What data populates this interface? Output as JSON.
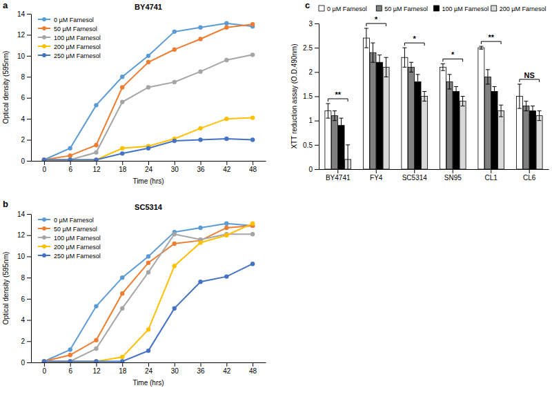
{
  "chart_data": [
    {
      "type": "line",
      "panel": "a",
      "title": "BY4741",
      "x_label": "Time (hrs)",
      "y_label": "Optical density (595nm)",
      "x": [
        0,
        6,
        12,
        18,
        24,
        30,
        36,
        42,
        48
      ],
      "xlim": [
        -3,
        51
      ],
      "xticks": [
        0,
        6,
        12,
        18,
        24,
        30,
        36,
        42,
        48
      ],
      "ylim": [
        0,
        14
      ],
      "yticks": [
        0,
        2,
        4,
        6,
        8,
        10,
        12,
        14
      ],
      "grid": false,
      "legend": "upper left",
      "marker": "circle",
      "series": [
        {
          "name": "0 µM Farnesol",
          "color": "#5b9bd5",
          "values": [
            0.1,
            1.2,
            5.3,
            8.0,
            10.0,
            12.3,
            12.7,
            13.1,
            12.8
          ]
        },
        {
          "name": "50 µM Farnesol",
          "color": "#ed7d31",
          "values": [
            0.1,
            0.5,
            1.5,
            7.0,
            9.4,
            10.6,
            11.6,
            12.7,
            13.0
          ]
        },
        {
          "name": "100 µM Farnesol",
          "color": "#a5a5a5",
          "values": [
            0.1,
            0.1,
            0.8,
            5.6,
            7.0,
            7.5,
            8.5,
            9.6,
            10.1
          ]
        },
        {
          "name": "200 µM Farnesol",
          "color": "#ffc000",
          "values": [
            0.1,
            0.1,
            0.1,
            1.2,
            1.4,
            2.1,
            3.1,
            4.0,
            4.1
          ]
        },
        {
          "name": "250 µM Farnesol",
          "color": "#4472c4",
          "values": [
            0.1,
            0.1,
            0.1,
            0.7,
            1.2,
            1.9,
            2.0,
            2.1,
            2.0
          ]
        }
      ]
    },
    {
      "type": "line",
      "panel": "b",
      "title": "SC5314",
      "x_label": "Time (hrs)",
      "y_label": "Optical density (595nm)",
      "x": [
        0,
        6,
        12,
        18,
        24,
        30,
        36,
        42,
        48
      ],
      "xlim": [
        -3,
        51
      ],
      "xticks": [
        0,
        6,
        12,
        18,
        24,
        30,
        36,
        42,
        48
      ],
      "ylim": [
        0,
        14
      ],
      "yticks": [
        0,
        2,
        4,
        6,
        8,
        10,
        12,
        14
      ],
      "grid": false,
      "legend": "upper left",
      "marker": "circle",
      "series": [
        {
          "name": "0 µM Farnesol",
          "color": "#5b9bd5",
          "values": [
            0.1,
            1.2,
            5.3,
            8.0,
            10.0,
            12.3,
            12.7,
            13.1,
            12.9
          ]
        },
        {
          "name": "50 µM Farnesol",
          "color": "#ed7d31",
          "values": [
            0.1,
            0.7,
            2.1,
            6.5,
            9.4,
            11.2,
            11.5,
            12.7,
            12.9
          ]
        },
        {
          "name": "100 µM Farnesol",
          "color": "#a5a5a5",
          "values": [
            0.1,
            0.1,
            1.3,
            5.1,
            8.5,
            12.1,
            11.6,
            12.1,
            12.1
          ]
        },
        {
          "name": "200 µM Farnesol",
          "color": "#ffc000",
          "values": [
            0.1,
            0.1,
            0.1,
            0.5,
            3.1,
            9.1,
            11.3,
            12.0,
            13.1
          ]
        },
        {
          "name": "250 µM Farnesol",
          "color": "#4472c4",
          "values": [
            0.1,
            0.1,
            0.1,
            0.1,
            1.1,
            5.1,
            7.6,
            8.1,
            9.3
          ]
        }
      ]
    },
    {
      "type": "bar",
      "panel": "c",
      "y_label": "XTT reduction assay (O.D.490nm)",
      "categories": [
        "BY4741",
        "FY4",
        "SC5314",
        "SN95",
        "CL1",
        "CL6"
      ],
      "ylim": [
        0,
        3
      ],
      "yticks": [
        0,
        0.5,
        1,
        1.5,
        2,
        2.5,
        3
      ],
      "grid": false,
      "legend": "top",
      "annotations": [
        "**",
        "*",
        "*",
        "*",
        "**",
        "NS"
      ],
      "series": [
        {
          "name": "0 µM Farnesol",
          "color": "#ffffff",
          "values": [
            1.2,
            2.7,
            2.3,
            2.1,
            2.5,
            1.5
          ],
          "errors": [
            0.15,
            0.2,
            0.2,
            0.07,
            0.03,
            0.25
          ]
        },
        {
          "name": "50 µM Farnesol",
          "color": "#808080",
          "values": [
            1.1,
            2.4,
            2.1,
            1.8,
            1.9,
            1.3
          ],
          "errors": [
            0.1,
            0.2,
            0.1,
            0.15,
            0.15,
            0.1
          ]
        },
        {
          "name": "100 µM Farnesol",
          "color": "#000000",
          "values": [
            0.9,
            2.2,
            1.8,
            1.6,
            1.6,
            1.2
          ],
          "errors": [
            0.15,
            0.15,
            0.15,
            0.1,
            0.1,
            0.1
          ]
        },
        {
          "name": "200 µM Farnesol",
          "color": "#d9d9d9",
          "values": [
            0.2,
            2.1,
            1.5,
            1.4,
            1.2,
            1.1
          ],
          "errors": [
            0.3,
            0.2,
            0.1,
            0.1,
            0.12,
            0.1
          ]
        }
      ]
    }
  ]
}
